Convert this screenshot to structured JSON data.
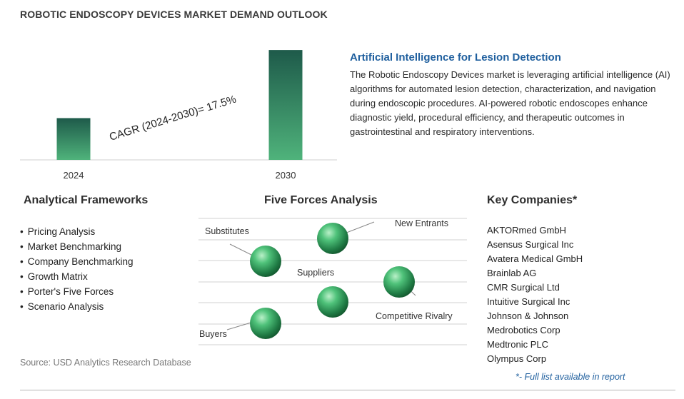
{
  "title": "ROBOTIC ENDOSCOPY DEVICES MARKET DEMAND OUTLOOK",
  "chart_data": {
    "type": "bar",
    "categories": [
      "2024",
      "2030"
    ],
    "values": [
      1.0,
      2.63
    ],
    "value_note": "",
    "annotation": "CAGR (2024-2030)=  17.5%",
    "colors": {
      "bar_top": "#1e5a4a",
      "bar_bottom": "#4fb37b"
    },
    "ylim": [
      0,
      2.7
    ]
  },
  "insight": {
    "heading": "Artificial Intelligence for Lesion Detection",
    "body": "The Robotic Endoscopy Devices market is leveraging artificial intelligence (AI) algorithms for automated lesion detection, characterization, and navigation during endoscopic procedures. AI-powered robotic endoscopes enhance diagnostic yield, procedural efficiency, and therapeutic outcomes in gastrointestinal and respiratory interventions."
  },
  "frameworks": {
    "title": "Analytical Frameworks",
    "items": [
      "Pricing Analysis",
      "Market Benchmarking",
      "Company Benchmarking",
      "Growth Matrix",
      "Porter's Five Forces",
      "Scenario Analysis"
    ]
  },
  "five_forces": {
    "title": "Five Forces Analysis",
    "labels": {
      "new_entrants": "New Entrants",
      "substitutes": "Substitutes",
      "suppliers": "Suppliers",
      "competitive_rivalry": "Competitive Rivalry",
      "buyers": "Buyers"
    }
  },
  "companies": {
    "title": "Key Companies*",
    "items": [
      "AKTORmed GmbH",
      "Asensus Surgical Inc",
      "Avatera Medical GmbH",
      "Brainlab AG",
      "CMR Surgical Ltd",
      "Intuitive Surgical Inc",
      "Johnson & Johnson",
      "Medrobotics Corp",
      "Medtronic PLC",
      "Olympus Corp"
    ],
    "footnote": "*- Full list available in report"
  },
  "source": "Source: USD Analytics Research Database"
}
